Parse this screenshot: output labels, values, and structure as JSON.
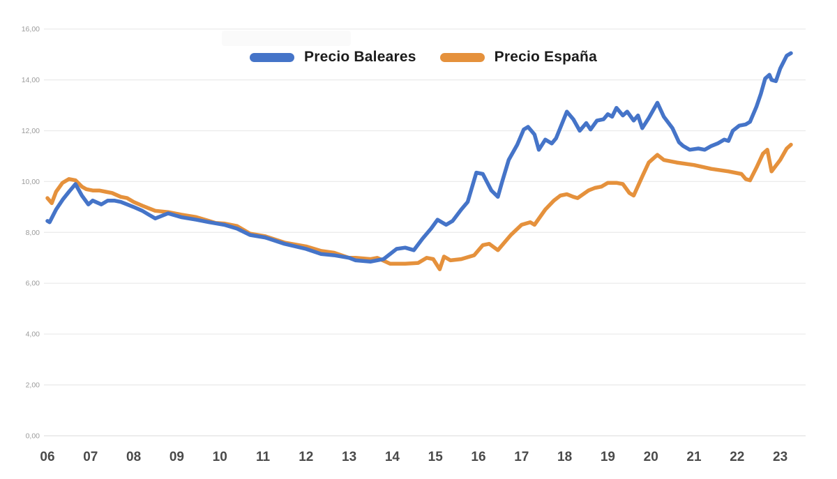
{
  "page": {
    "background": "#ffffff"
  },
  "legend": {
    "items": [
      {
        "label": "Precio Baleares",
        "color": "#4574C8"
      },
      {
        "label": "Precio España",
        "color": "#E5913C"
      }
    ]
  },
  "chart_data": {
    "type": "line",
    "title": "",
    "xlabel": "",
    "ylabel": "",
    "grid": true,
    "legend_position": "top-center",
    "x_axis": {
      "tick_labels": [
        "06",
        "07",
        "08",
        "09",
        "10",
        "11",
        "12",
        "13",
        "14",
        "15",
        "16",
        "17",
        "18",
        "19",
        "20",
        "21",
        "22",
        "23"
      ],
      "tick_values": [
        2006,
        2007,
        2008,
        2009,
        2010,
        2011,
        2012,
        2013,
        2014,
        2015,
        2016,
        2017,
        2018,
        2019,
        2020,
        2021,
        2022,
        2023
      ],
      "range": [
        2005.9,
        2024.2
      ]
    },
    "y_axis": {
      "tick_labels": [
        "0,00",
        "2,00",
        "4,00",
        "6,00",
        "8,00",
        "10,00",
        "12,00",
        "14,00",
        "16,00"
      ],
      "tick_values": [
        0,
        2,
        4,
        6,
        8,
        10,
        12,
        14,
        16
      ],
      "range": [
        0,
        16
      ]
    },
    "series": [
      {
        "name": "Precio Baleares",
        "color": "#4574C8",
        "points": [
          [
            2006.0,
            8.45
          ],
          [
            2006.05,
            8.4
          ],
          [
            2006.2,
            8.9
          ],
          [
            2006.36,
            9.3
          ],
          [
            2006.5,
            9.6
          ],
          [
            2006.65,
            9.9
          ],
          [
            2006.8,
            9.45
          ],
          [
            2006.95,
            9.1
          ],
          [
            2007.05,
            9.25
          ],
          [
            2007.25,
            9.1
          ],
          [
            2007.4,
            9.25
          ],
          [
            2007.55,
            9.25
          ],
          [
            2007.7,
            9.2
          ],
          [
            2007.85,
            9.1
          ],
          [
            2008.0,
            9.0
          ],
          [
            2008.2,
            8.85
          ],
          [
            2008.35,
            8.7
          ],
          [
            2008.5,
            8.55
          ],
          [
            2008.8,
            8.75
          ],
          [
            2009.1,
            8.6
          ],
          [
            2009.45,
            8.5
          ],
          [
            2009.75,
            8.4
          ],
          [
            2010.1,
            8.3
          ],
          [
            2010.4,
            8.15
          ],
          [
            2010.7,
            7.9
          ],
          [
            2011.05,
            7.8
          ],
          [
            2011.5,
            7.55
          ],
          [
            2012.0,
            7.35
          ],
          [
            2012.35,
            7.15
          ],
          [
            2012.65,
            7.1
          ],
          [
            2013.0,
            7.0
          ],
          [
            2013.15,
            6.9
          ],
          [
            2013.5,
            6.85
          ],
          [
            2013.8,
            6.95
          ],
          [
            2014.1,
            7.35
          ],
          [
            2014.3,
            7.4
          ],
          [
            2014.5,
            7.3
          ],
          [
            2014.7,
            7.75
          ],
          [
            2014.9,
            8.15
          ],
          [
            2015.05,
            8.5
          ],
          [
            2015.25,
            8.3
          ],
          [
            2015.4,
            8.45
          ],
          [
            2015.6,
            8.9
          ],
          [
            2015.75,
            9.2
          ],
          [
            2015.95,
            10.35
          ],
          [
            2016.1,
            10.3
          ],
          [
            2016.3,
            9.65
          ],
          [
            2016.45,
            9.4
          ],
          [
            2016.55,
            10.0
          ],
          [
            2016.7,
            10.85
          ],
          [
            2016.9,
            11.45
          ],
          [
            2017.05,
            12.05
          ],
          [
            2017.15,
            12.15
          ],
          [
            2017.3,
            11.85
          ],
          [
            2017.4,
            11.25
          ],
          [
            2017.55,
            11.65
          ],
          [
            2017.7,
            11.5
          ],
          [
            2017.8,
            11.7
          ],
          [
            2018.05,
            12.75
          ],
          [
            2018.2,
            12.45
          ],
          [
            2018.35,
            12.0
          ],
          [
            2018.5,
            12.3
          ],
          [
            2018.6,
            12.05
          ],
          [
            2018.75,
            12.4
          ],
          [
            2018.9,
            12.45
          ],
          [
            2019.0,
            12.65
          ],
          [
            2019.1,
            12.55
          ],
          [
            2019.2,
            12.9
          ],
          [
            2019.35,
            12.6
          ],
          [
            2019.45,
            12.75
          ],
          [
            2019.6,
            12.4
          ],
          [
            2019.7,
            12.6
          ],
          [
            2019.8,
            12.1
          ],
          [
            2019.95,
            12.5
          ],
          [
            2020.15,
            13.1
          ],
          [
            2020.3,
            12.55
          ],
          [
            2020.5,
            12.1
          ],
          [
            2020.65,
            11.55
          ],
          [
            2020.75,
            11.4
          ],
          [
            2020.9,
            11.25
          ],
          [
            2021.1,
            11.3
          ],
          [
            2021.25,
            11.25
          ],
          [
            2021.4,
            11.4
          ],
          [
            2021.55,
            11.5
          ],
          [
            2021.7,
            11.65
          ],
          [
            2021.8,
            11.6
          ],
          [
            2021.9,
            12.0
          ],
          [
            2022.05,
            12.2
          ],
          [
            2022.2,
            12.25
          ],
          [
            2022.3,
            12.35
          ],
          [
            2022.45,
            12.95
          ],
          [
            2022.55,
            13.45
          ],
          [
            2022.65,
            14.05
          ],
          [
            2022.75,
            14.2
          ],
          [
            2022.8,
            14.0
          ],
          [
            2022.9,
            13.95
          ],
          [
            2023.0,
            14.45
          ],
          [
            2023.15,
            14.95
          ],
          [
            2023.25,
            15.05
          ]
        ]
      },
      {
        "name": "Precio España",
        "color": "#E5913C",
        "points": [
          [
            2006.0,
            9.35
          ],
          [
            2006.1,
            9.15
          ],
          [
            2006.2,
            9.6
          ],
          [
            2006.35,
            9.95
          ],
          [
            2006.5,
            10.1
          ],
          [
            2006.65,
            10.05
          ],
          [
            2006.8,
            9.8
          ],
          [
            2006.9,
            9.7
          ],
          [
            2007.05,
            9.65
          ],
          [
            2007.2,
            9.65
          ],
          [
            2007.35,
            9.6
          ],
          [
            2007.5,
            9.55
          ],
          [
            2007.7,
            9.4
          ],
          [
            2007.85,
            9.35
          ],
          [
            2008.0,
            9.2
          ],
          [
            2008.2,
            9.05
          ],
          [
            2008.35,
            8.95
          ],
          [
            2008.5,
            8.85
          ],
          [
            2008.8,
            8.8
          ],
          [
            2009.1,
            8.7
          ],
          [
            2009.45,
            8.6
          ],
          [
            2009.75,
            8.45
          ],
          [
            2009.9,
            8.37
          ],
          [
            2010.1,
            8.35
          ],
          [
            2010.4,
            8.25
          ],
          [
            2010.7,
            7.95
          ],
          [
            2011.05,
            7.85
          ],
          [
            2011.5,
            7.6
          ],
          [
            2012.0,
            7.45
          ],
          [
            2012.35,
            7.27
          ],
          [
            2012.65,
            7.2
          ],
          [
            2013.0,
            7.0
          ],
          [
            2013.15,
            7.0
          ],
          [
            2013.5,
            6.95
          ],
          [
            2013.65,
            7.0
          ],
          [
            2013.95,
            6.77
          ],
          [
            2014.3,
            6.77
          ],
          [
            2014.6,
            6.8
          ],
          [
            2014.8,
            7.0
          ],
          [
            2014.95,
            6.95
          ],
          [
            2015.1,
            6.55
          ],
          [
            2015.2,
            7.05
          ],
          [
            2015.35,
            6.9
          ],
          [
            2015.6,
            6.95
          ],
          [
            2015.9,
            7.1
          ],
          [
            2016.1,
            7.5
          ],
          [
            2016.25,
            7.55
          ],
          [
            2016.45,
            7.3
          ],
          [
            2016.75,
            7.9
          ],
          [
            2017.0,
            8.3
          ],
          [
            2017.2,
            8.4
          ],
          [
            2017.3,
            8.3
          ],
          [
            2017.55,
            8.9
          ],
          [
            2017.75,
            9.25
          ],
          [
            2017.9,
            9.45
          ],
          [
            2018.05,
            9.5
          ],
          [
            2018.2,
            9.4
          ],
          [
            2018.3,
            9.35
          ],
          [
            2018.55,
            9.65
          ],
          [
            2018.7,
            9.75
          ],
          [
            2018.85,
            9.8
          ],
          [
            2019.0,
            9.95
          ],
          [
            2019.2,
            9.95
          ],
          [
            2019.35,
            9.9
          ],
          [
            2019.5,
            9.55
          ],
          [
            2019.6,
            9.45
          ],
          [
            2019.8,
            10.2
          ],
          [
            2019.95,
            10.75
          ],
          [
            2020.15,
            11.05
          ],
          [
            2020.3,
            10.85
          ],
          [
            2020.6,
            10.75
          ],
          [
            2021.0,
            10.65
          ],
          [
            2021.4,
            10.5
          ],
          [
            2021.8,
            10.4
          ],
          [
            2022.1,
            10.3
          ],
          [
            2022.2,
            10.1
          ],
          [
            2022.3,
            10.05
          ],
          [
            2022.45,
            10.55
          ],
          [
            2022.6,
            11.1
          ],
          [
            2022.7,
            11.25
          ],
          [
            2022.8,
            10.4
          ],
          [
            2023.0,
            10.85
          ],
          [
            2023.15,
            11.3
          ],
          [
            2023.25,
            11.45
          ]
        ]
      }
    ]
  }
}
